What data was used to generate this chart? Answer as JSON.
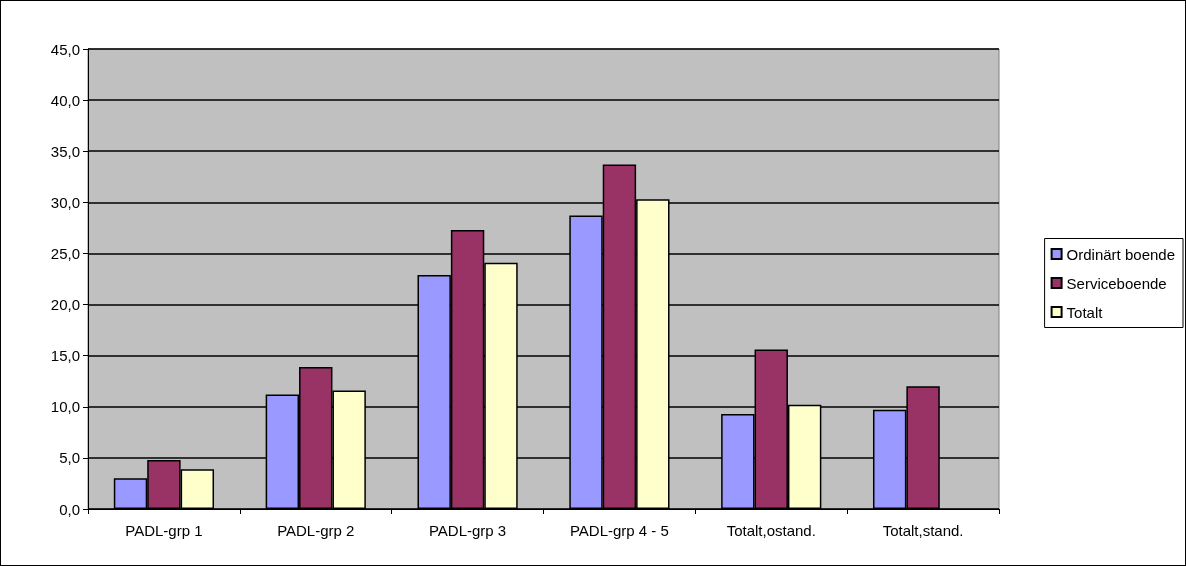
{
  "chart_data": {
    "type": "bar",
    "categories": [
      "PADL-grp 1",
      "PADL-grp 2",
      "PADL-grp 3",
      "PADL-grp 4 - 5",
      "Totalt,ostand.",
      "Totalt,stand."
    ],
    "series": [
      {
        "name": "Ordinärt boende",
        "color": "#9999ff",
        "values": [
          3.0,
          11.2,
          22.9,
          28.7,
          9.3,
          9.7
        ]
      },
      {
        "name": "Serviceboende",
        "color": "#993366",
        "values": [
          4.8,
          13.9,
          27.3,
          33.7,
          15.6,
          12.0
        ]
      },
      {
        "name": "Totalt",
        "color": "#ffffcc",
        "values": [
          3.9,
          11.6,
          24.1,
          30.3,
          10.2,
          null
        ]
      }
    ],
    "ylim": [
      0,
      45
    ],
    "yticks": [
      {
        "value": 0,
        "label": "0,0"
      },
      {
        "value": 5,
        "label": "5,0"
      },
      {
        "value": 10,
        "label": "10,0"
      },
      {
        "value": 15,
        "label": "15,0"
      },
      {
        "value": 20,
        "label": "20,0"
      },
      {
        "value": 25,
        "label": "25,0"
      },
      {
        "value": 30,
        "label": "30,0"
      },
      {
        "value": 35,
        "label": "35,0"
      },
      {
        "value": 40,
        "label": "40,0"
      },
      {
        "value": 45,
        "label": "45,0"
      }
    ],
    "grid": "y",
    "legend": "right"
  }
}
